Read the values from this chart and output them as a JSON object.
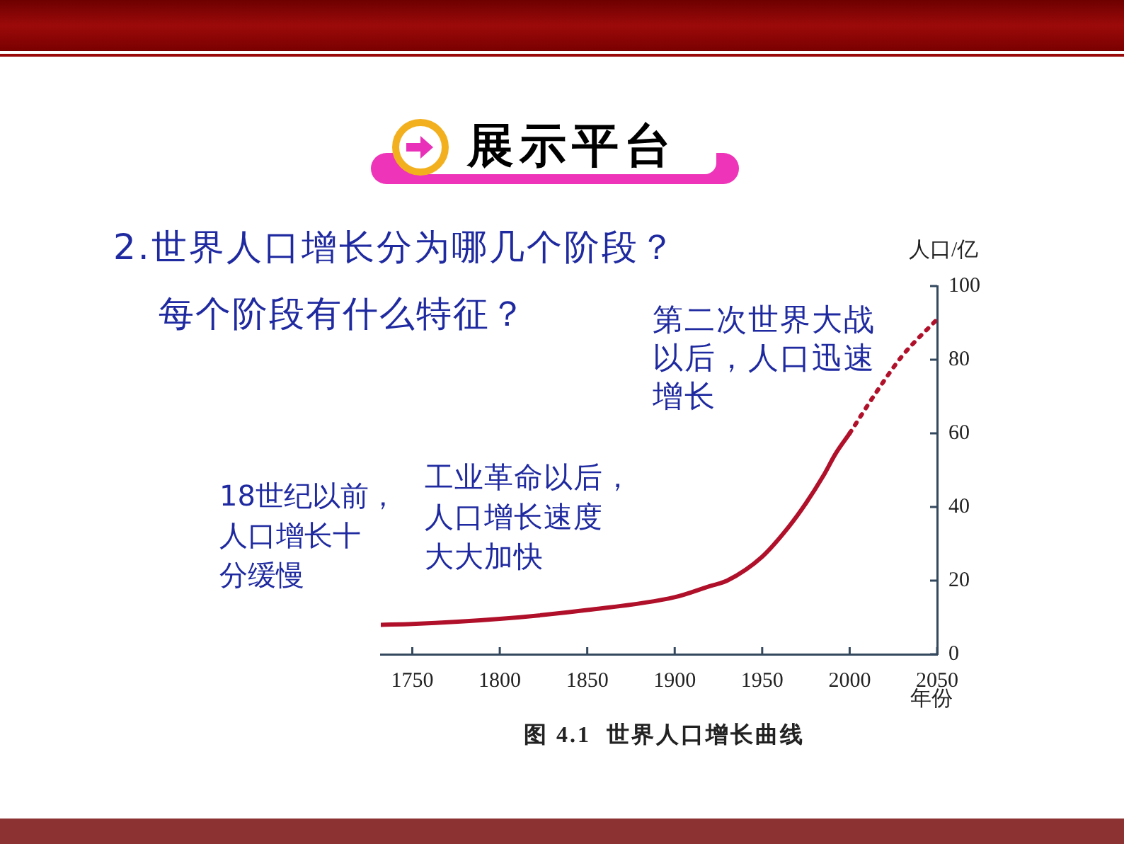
{
  "chart_data": {
    "type": "line",
    "title": "2.世界人口增长分为哪几个阶段？",
    "subtitle": "每个阶段有什么特征？",
    "xlabel": "年份",
    "ylabel": "人口/亿",
    "annotations": [
      "展示平台",
      "第二次世界大战以后，人口迅速增长",
      "工业革命以后，人口增长速度大大加快",
      "18世纪以前，人口增长十分缓慢",
      "图 4.1  世界人口增长曲线"
    ],
    "series": [
      {
        "color": "#b0102a",
        "line_style": "solid",
        "x": [
          1732,
          1750,
          1800,
          1850,
          1900,
          1920,
          1930,
          1950,
          1965,
          1975,
          1985,
          1992,
          2000
        ],
        "values": [
          8,
          8.2,
          9.6,
          12,
          15.5,
          18.5,
          20,
          26.5,
          34.5,
          41,
          48.5,
          54.5,
          60
        ]
      },
      {
        "color": "#b0102a",
        "line_style": "dotted",
        "x": [
          2000,
          2015,
          2030,
          2050
        ],
        "values": [
          60,
          71,
          81,
          91
        ]
      }
    ],
    "xlim": [
      1732,
      2050
    ],
    "xticks": [
      1750,
      1800,
      1850,
      1900,
      1950,
      2000,
      2050
    ],
    "ylim": [
      0,
      100
    ],
    "yticks": [
      0,
      20,
      40,
      60,
      80,
      100
    ]
  }
}
